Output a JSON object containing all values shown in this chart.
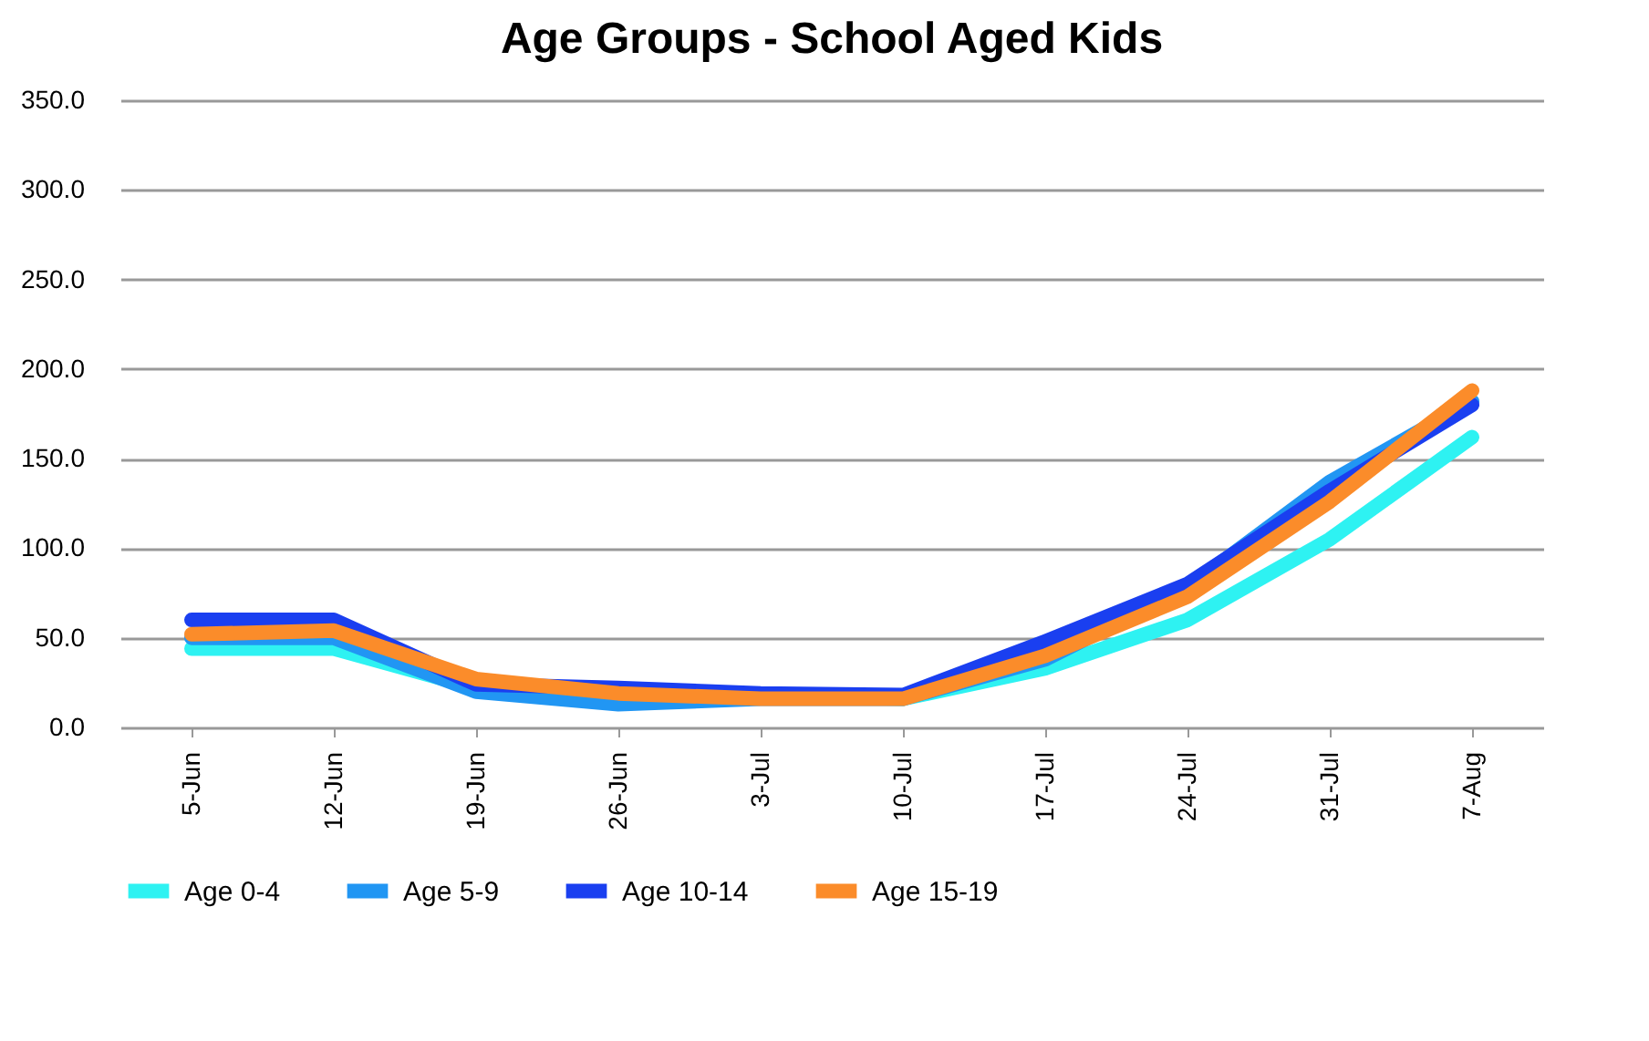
{
  "chart_data": {
    "type": "line",
    "title": "Age Groups - School Aged Kids",
    "categories": [
      "5-Jun",
      "12-Jun",
      "19-Jun",
      "26-Jun",
      "3-Jul",
      "10-Jul",
      "17-Jul",
      "24-Jul",
      "31-Jul",
      "7-Aug"
    ],
    "series": [
      {
        "name": "Age 0-4",
        "color": "#2ef2f2",
        "values": [
          44,
          44,
          22,
          18,
          18,
          16,
          33,
          60,
          105,
          162
        ]
      },
      {
        "name": "Age 5-9",
        "color": "#2196f3",
        "values": [
          50,
          50,
          20,
          13,
          16,
          16,
          38,
          78,
          137,
          182
        ]
      },
      {
        "name": "Age 10-14",
        "color": "#1a3ff0",
        "values": [
          60,
          60,
          24,
          22,
          19,
          18,
          48,
          80,
          132,
          180
        ]
      },
      {
        "name": "Age 15-19",
        "color": "#fb8c2a",
        "values": [
          52,
          54,
          27,
          19,
          16,
          16,
          40,
          73,
          126,
          188
        ]
      }
    ],
    "ylim": [
      0,
      350
    ],
    "yticks": [
      {
        "value": 0,
        "label": "0.0"
      },
      {
        "value": 50,
        "label": "50.0"
      },
      {
        "value": 100,
        "label": "100.0"
      },
      {
        "value": 150,
        "label": "150.0"
      },
      {
        "value": 200,
        "label": "200.0"
      },
      {
        "value": 250,
        "label": "250.0"
      },
      {
        "value": 300,
        "label": "300.0"
      },
      {
        "value": 350,
        "label": "350.0"
      }
    ],
    "grid": "y",
    "legend": "bottom",
    "line_style": "solid"
  }
}
